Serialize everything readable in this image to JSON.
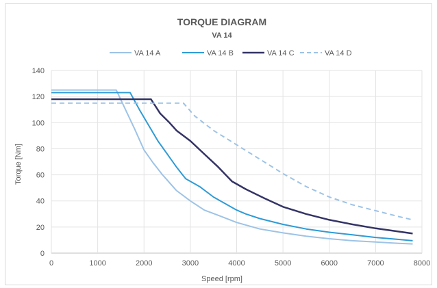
{
  "chart_data": {
    "type": "line",
    "title": "TORQUE DIAGRAM",
    "subtitle": "VA 14",
    "xlabel": "Speed [rpm]",
    "ylabel": "Torque [Nm]",
    "xlim": [
      0,
      8000
    ],
    "ylim": [
      0,
      140
    ],
    "x_ticks": [
      0,
      1000,
      2000,
      3000,
      4000,
      5000,
      6000,
      7000,
      8000
    ],
    "y_ticks": [
      0,
      20,
      40,
      60,
      80,
      100,
      120,
      140
    ],
    "x_tick_labels": [
      "0",
      "1000",
      "2000",
      "3000",
      "4000",
      "5000",
      "6000",
      "7000",
      "8000"
    ],
    "y_tick_labels": [
      "0",
      "20",
      "40",
      "60",
      "80",
      "100",
      "120",
      "140"
    ],
    "grid": true,
    "legend_position": "top",
    "series": [
      {
        "name": "VA 14 A",
        "color": "#9dc3e6",
        "dash": "solid",
        "points": [
          [
            0,
            125
          ],
          [
            1400,
            125
          ],
          [
            1600,
            110
          ],
          [
            1800,
            95
          ],
          [
            2000,
            79
          ],
          [
            2200,
            69
          ],
          [
            2400,
            60
          ],
          [
            2700,
            48
          ],
          [
            3000,
            40
          ],
          [
            3300,
            33
          ],
          [
            3600,
            29
          ],
          [
            4000,
            23.5
          ],
          [
            4500,
            18.5
          ],
          [
            5000,
            15.5
          ],
          [
            5500,
            13
          ],
          [
            6000,
            11
          ],
          [
            6500,
            9.5
          ],
          [
            7000,
            8.5
          ],
          [
            7500,
            7.5
          ],
          [
            7800,
            7
          ]
        ]
      },
      {
        "name": "VA 14 B",
        "color": "#2e9bd6",
        "dash": "solid",
        "points": [
          [
            0,
            123
          ],
          [
            1700,
            123
          ],
          [
            1900,
            110
          ],
          [
            2100,
            98
          ],
          [
            2300,
            86
          ],
          [
            2500,
            76
          ],
          [
            2700,
            66
          ],
          [
            2900,
            57
          ],
          [
            3200,
            51
          ],
          [
            3500,
            43
          ],
          [
            4000,
            33
          ],
          [
            4200,
            30
          ],
          [
            4500,
            26.5
          ],
          [
            5000,
            22
          ],
          [
            5500,
            18.5
          ],
          [
            6000,
            16
          ],
          [
            6500,
            14
          ],
          [
            7000,
            12
          ],
          [
            7500,
            10.5
          ],
          [
            7800,
            9.5
          ]
        ]
      },
      {
        "name": "VA 14 C",
        "color": "#333366",
        "dash": "solid",
        "points": [
          [
            0,
            118
          ],
          [
            2150,
            118
          ],
          [
            2350,
            107
          ],
          [
            2550,
            100
          ],
          [
            2700,
            94
          ],
          [
            3000,
            86
          ],
          [
            3300,
            76
          ],
          [
            3600,
            66
          ],
          [
            3900,
            55
          ],
          [
            4200,
            49
          ],
          [
            4600,
            42
          ],
          [
            5000,
            35.5
          ],
          [
            5500,
            30
          ],
          [
            6000,
            25.5
          ],
          [
            6500,
            22
          ],
          [
            7000,
            19
          ],
          [
            7500,
            16.5
          ],
          [
            7800,
            15
          ]
        ]
      },
      {
        "name": "VA 14 D",
        "color": "#9dc3e6",
        "dash": "dashed",
        "points": [
          [
            0,
            115
          ],
          [
            2850,
            115
          ],
          [
            3100,
            105
          ],
          [
            3500,
            94
          ],
          [
            4000,
            83
          ],
          [
            4500,
            72
          ],
          [
            5000,
            61
          ],
          [
            5500,
            51
          ],
          [
            6000,
            43
          ],
          [
            6500,
            37
          ],
          [
            7000,
            32.5
          ],
          [
            7500,
            28
          ],
          [
            7800,
            25.5
          ]
        ]
      }
    ]
  }
}
